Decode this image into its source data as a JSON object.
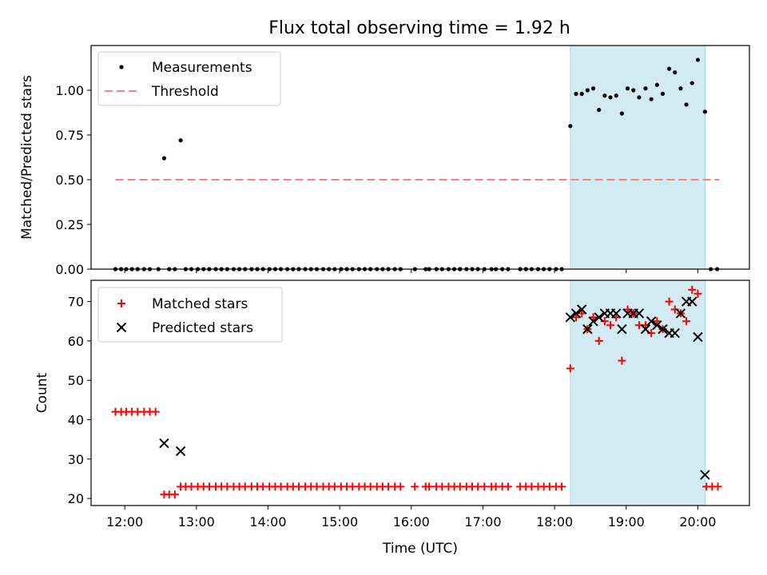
{
  "chart_data": {
    "title": "Flux total observing time = 1.92 h",
    "xlabel": "Time (UTC)",
    "x_ticks": [
      "12:00",
      "13:00",
      "14:00",
      "15:00",
      "16:00",
      "17:00",
      "18:00",
      "19:00",
      "20:00"
    ],
    "x_tick_hours": [
      12,
      13,
      14,
      15,
      16,
      17,
      18,
      19,
      20
    ],
    "xlim": [
      11.53,
      20.72
    ],
    "highlight_span": [
      18.22,
      20.1
    ],
    "colors": {
      "span": "#add8e6",
      "threshold": "#ff7f7f",
      "matched": "#ff0000",
      "predicted": "#000000",
      "measure": "#000000"
    },
    "top": {
      "type": "scatter",
      "ylabel": "Matched/Predicted stars",
      "ylim": [
        0,
        1.25
      ],
      "y_ticks": [
        "0.00",
        "0.25",
        "0.50",
        "0.75",
        "1.00"
      ],
      "y_tick_values": [
        0,
        0.25,
        0.5,
        0.75,
        1.0
      ],
      "legend": {
        "position": "top-left",
        "measurements": "Measurements",
        "threshold": "Threshold"
      },
      "threshold": {
        "value": 0.5,
        "x_range": [
          11.87,
          20.3
        ]
      },
      "zero_times": [
        11.87,
        11.95,
        12.02,
        12.1,
        12.18,
        12.27,
        12.35,
        12.47,
        12.62,
        12.7,
        12.85,
        12.93,
        13.02,
        13.1,
        13.18,
        13.27,
        13.35,
        13.43,
        13.52,
        13.6,
        13.68,
        13.77,
        13.85,
        13.93,
        14.02,
        14.1,
        14.18,
        14.27,
        14.35,
        14.43,
        14.52,
        14.6,
        14.68,
        14.77,
        14.85,
        14.93,
        15.02,
        15.1,
        15.18,
        15.27,
        15.35,
        15.43,
        15.52,
        15.6,
        15.68,
        15.77,
        15.85,
        16.05,
        16.2,
        16.25,
        16.35,
        16.43,
        16.52,
        16.6,
        16.68,
        16.77,
        16.85,
        16.93,
        17.02,
        17.12,
        17.18,
        17.27,
        17.35,
        17.52,
        17.6,
        17.68,
        17.77,
        17.85,
        17.93,
        18.02,
        18.1,
        20.18,
        20.27
      ],
      "points": [
        {
          "t": 12.55,
          "v": 0.62
        },
        {
          "t": 12.78,
          "v": 0.72
        },
        {
          "t": 18.22,
          "v": 0.8
        },
        {
          "t": 18.3,
          "v": 0.98
        },
        {
          "t": 18.38,
          "v": 0.98
        },
        {
          "t": 18.46,
          "v": 1.0
        },
        {
          "t": 18.54,
          "v": 1.01
        },
        {
          "t": 18.62,
          "v": 0.89
        },
        {
          "t": 18.7,
          "v": 0.97
        },
        {
          "t": 18.78,
          "v": 0.96
        },
        {
          "t": 18.86,
          "v": 0.97
        },
        {
          "t": 18.94,
          "v": 0.87
        },
        {
          "t": 19.02,
          "v": 1.01
        },
        {
          "t": 19.1,
          "v": 1.0
        },
        {
          "t": 19.18,
          "v": 0.96
        },
        {
          "t": 19.27,
          "v": 1.01
        },
        {
          "t": 19.35,
          "v": 0.95
        },
        {
          "t": 19.43,
          "v": 1.03
        },
        {
          "t": 19.51,
          "v": 0.98
        },
        {
          "t": 19.6,
          "v": 1.12
        },
        {
          "t": 19.68,
          "v": 1.1
        },
        {
          "t": 19.76,
          "v": 1.01
        },
        {
          "t": 19.84,
          "v": 0.92
        },
        {
          "t": 19.92,
          "v": 1.04
        },
        {
          "t": 20.0,
          "v": 1.17
        },
        {
          "t": 20.1,
          "v": 0.88
        }
      ]
    },
    "bottom": {
      "type": "scatter",
      "ylabel": "Count",
      "ylim": [
        18.2,
        75.4
      ],
      "y_ticks": [
        "20",
        "30",
        "40",
        "50",
        "60",
        "70"
      ],
      "y_tick_values": [
        20,
        30,
        40,
        50,
        60,
        70
      ],
      "legend": {
        "position": "top-left",
        "matched": "Matched stars",
        "predicted": "Predicted stars"
      },
      "matched_runs": [
        {
          "value": 42,
          "times": [
            11.87,
            11.95,
            12.02,
            12.1,
            12.18,
            12.27,
            12.35,
            12.43
          ]
        },
        {
          "value": 21,
          "times": [
            12.55,
            12.62,
            12.7
          ]
        },
        {
          "value": 23,
          "times": [
            12.78,
            12.85,
            12.93,
            13.02,
            13.1,
            13.18,
            13.27,
            13.35,
            13.43,
            13.52,
            13.6,
            13.68,
            13.77,
            13.85,
            13.93,
            14.02,
            14.1,
            14.18,
            14.27,
            14.35,
            14.43,
            14.52,
            14.6,
            14.68,
            14.77,
            14.85,
            14.93,
            15.02,
            15.1,
            15.18,
            15.27,
            15.35,
            15.43,
            15.52,
            15.6,
            15.68,
            15.77,
            15.85,
            16.05,
            16.2,
            16.25,
            16.35,
            16.43,
            16.52,
            16.6,
            16.68,
            16.77,
            16.85,
            16.93,
            17.02,
            17.12,
            17.18,
            17.27,
            17.35,
            17.52,
            17.6,
            17.68,
            17.77,
            17.85,
            17.93,
            18.02,
            18.1,
            20.12,
            20.2,
            20.28
          ]
        }
      ],
      "matched_points": [
        {
          "t": 18.22,
          "v": 53
        },
        {
          "t": 18.3,
          "v": 66
        },
        {
          "t": 18.38,
          "v": 67
        },
        {
          "t": 18.46,
          "v": 63
        },
        {
          "t": 18.54,
          "v": 66
        },
        {
          "t": 18.62,
          "v": 60
        },
        {
          "t": 18.7,
          "v": 65
        },
        {
          "t": 18.78,
          "v": 64
        },
        {
          "t": 18.86,
          "v": 66
        },
        {
          "t": 18.94,
          "v": 55
        },
        {
          "t": 19.02,
          "v": 68
        },
        {
          "t": 19.1,
          "v": 67
        },
        {
          "t": 19.18,
          "v": 64
        },
        {
          "t": 19.27,
          "v": 64
        },
        {
          "t": 19.35,
          "v": 62
        },
        {
          "t": 19.43,
          "v": 65
        },
        {
          "t": 19.51,
          "v": 63
        },
        {
          "t": 19.6,
          "v": 70
        },
        {
          "t": 19.68,
          "v": 68
        },
        {
          "t": 19.76,
          "v": 67
        },
        {
          "t": 19.84,
          "v": 65
        },
        {
          "t": 19.92,
          "v": 73
        },
        {
          "t": 20.0,
          "v": 72
        }
      ],
      "predicted_points": [
        {
          "t": 12.55,
          "v": 34
        },
        {
          "t": 12.78,
          "v": 32
        },
        {
          "t": 18.22,
          "v": 66
        },
        {
          "t": 18.3,
          "v": 67
        },
        {
          "t": 18.38,
          "v": 68
        },
        {
          "t": 18.46,
          "v": 63
        },
        {
          "t": 18.54,
          "v": 65
        },
        {
          "t": 18.62,
          "v": 66
        },
        {
          "t": 18.7,
          "v": 67
        },
        {
          "t": 18.78,
          "v": 67
        },
        {
          "t": 18.86,
          "v": 67
        },
        {
          "t": 18.94,
          "v": 63
        },
        {
          "t": 19.02,
          "v": 67
        },
        {
          "t": 19.1,
          "v": 67
        },
        {
          "t": 19.18,
          "v": 67
        },
        {
          "t": 19.27,
          "v": 63
        },
        {
          "t": 19.35,
          "v": 65
        },
        {
          "t": 19.43,
          "v": 64
        },
        {
          "t": 19.51,
          "v": 63
        },
        {
          "t": 19.6,
          "v": 62
        },
        {
          "t": 19.68,
          "v": 62
        },
        {
          "t": 19.76,
          "v": 67
        },
        {
          "t": 19.84,
          "v": 70
        },
        {
          "t": 19.92,
          "v": 70
        },
        {
          "t": 20.0,
          "v": 61
        },
        {
          "t": 20.1,
          "v": 26
        }
      ]
    }
  }
}
